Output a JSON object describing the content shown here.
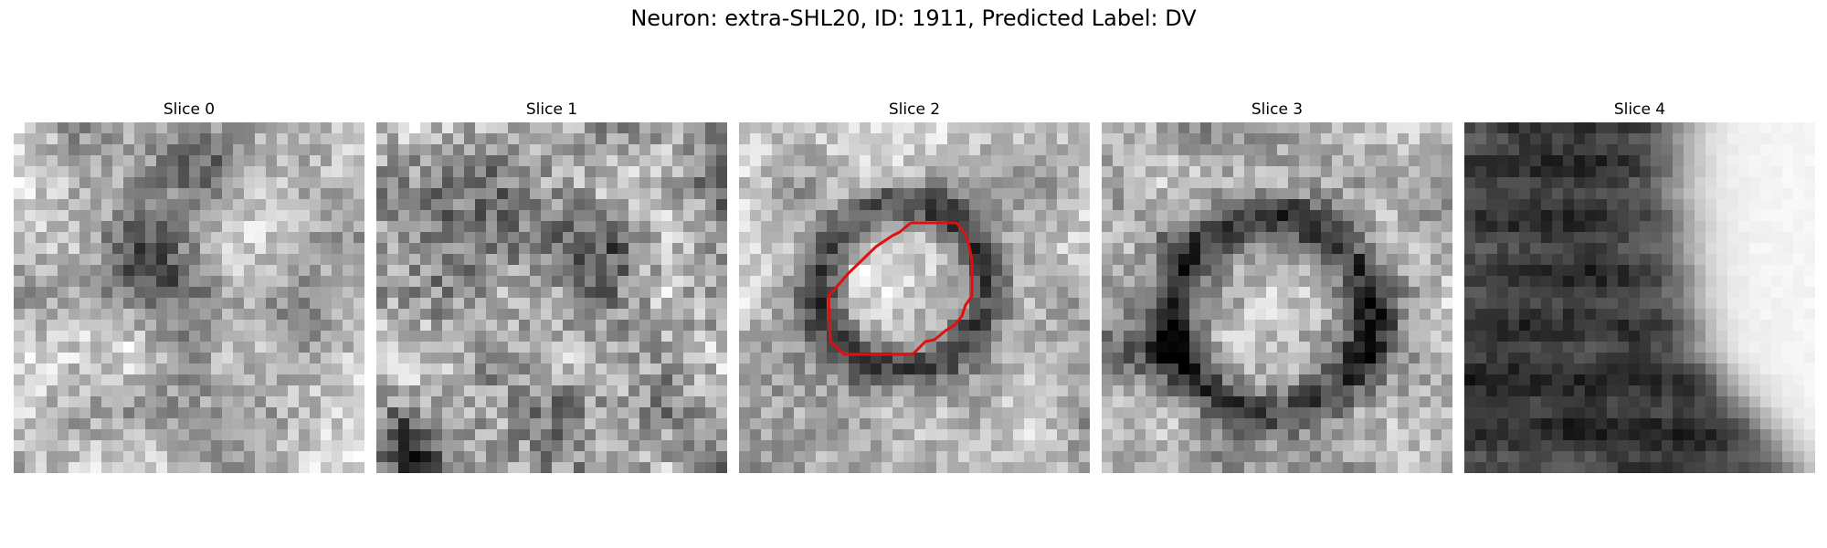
{
  "figure": {
    "title": "Neuron: extra-SHL20, ID: 1911, Predicted Label: DV"
  },
  "slices": [
    {
      "title": "Slice 0",
      "pattern": "small-dark-blob-center",
      "contour": false
    },
    {
      "title": "Slice 1",
      "pattern": "noisy-texture",
      "contour": false
    },
    {
      "title": "Slice 2",
      "pattern": "dark-ring",
      "contour": true
    },
    {
      "title": "Slice 3",
      "pattern": "dark-ring-large",
      "contour": false
    },
    {
      "title": "Slice 4",
      "pattern": "dark-field-bright-right-edge",
      "contour": false
    }
  ],
  "contour": {
    "color": "#e01010",
    "slice_index": 2
  },
  "colormap": "gray"
}
